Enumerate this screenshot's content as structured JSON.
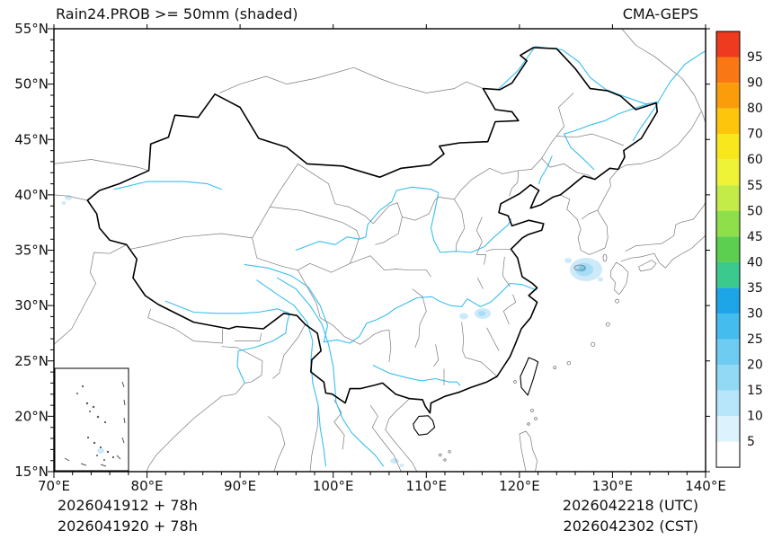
{
  "header": {
    "title": "Rain24.PROB >= 50mm (shaded)",
    "model": "CMA-GEPS"
  },
  "axes": {
    "lat_labels": [
      "55°N",
      "50°N",
      "45°N",
      "40°N",
      "35°N",
      "30°N",
      "25°N",
      "20°N",
      "15°N"
    ],
    "lon_labels": [
      "70°E",
      "80°E",
      "90°E",
      "100°E",
      "110°E",
      "120°E",
      "130°E",
      "140°E"
    ],
    "lon_range": [
      70,
      140
    ],
    "lat_range": [
      15,
      55
    ]
  },
  "colorbar": {
    "labels": [
      "95",
      "90",
      "80",
      "70",
      "60",
      "55",
      "50",
      "45",
      "40",
      "35",
      "30",
      "25",
      "20",
      "15",
      "10",
      "5"
    ],
    "colors": [
      "#ee3b20",
      "#f97815",
      "#fb9d0b",
      "#fdc60d",
      "#f8e71c",
      "#eef337",
      "#c4ec48",
      "#8fdf4a",
      "#5ccf50",
      "#3cc98e",
      "#1ea5e8",
      "#45bcee",
      "#6eccf2",
      "#92d9f6",
      "#b7e6fa",
      "#dcf2fc",
      "#ffffff"
    ]
  },
  "footer": {
    "init_utc": "2026041912 + 78h",
    "init_cst": "2026041920 + 78h",
    "valid_utc": "2026042218 (UTC)",
    "valid_cst": "2026042302 (CST)"
  },
  "colors": {
    "national_border": "#000000",
    "region_border": "#7a7a7a",
    "river": "#38bff0",
    "shade_10": "#cdeafa",
    "shade_15": "#a9ddf6",
    "shade_20": "#79ccf0"
  },
  "map": {
    "extent": "70E-140E, 15N-55N",
    "shaded_regions": [
      {
        "approx_lon": 127.3,
        "approx_lat": 33.3,
        "prob_percent_range": "10-25"
      },
      {
        "approx_lon": 115.9,
        "approx_lat": 29.3,
        "prob_percent_range": "5-15"
      },
      {
        "approx_lon": 71.5,
        "approx_lat": 39.8,
        "prob_percent_range": "5-10"
      },
      {
        "approx_lon": 106.8,
        "approx_lat": 15.9,
        "prob_percent_range": "5-10"
      }
    ]
  }
}
